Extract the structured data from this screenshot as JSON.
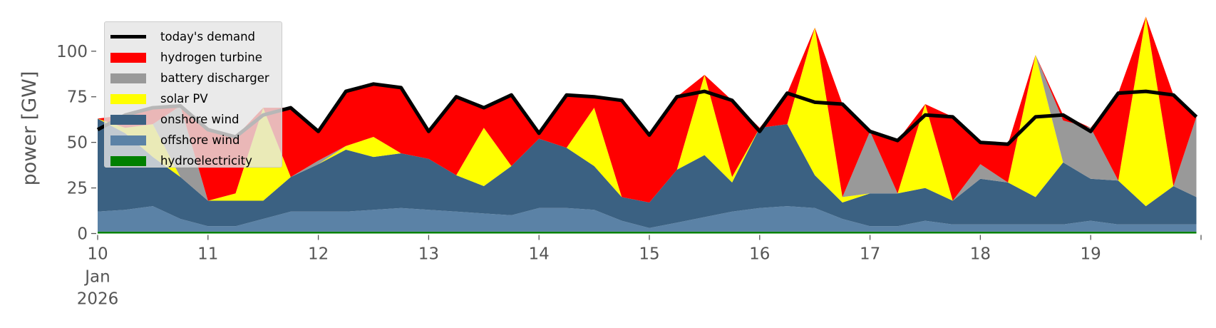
{
  "chart_data": {
    "type": "area",
    "stacked": true,
    "ylabel": "power [GW]",
    "xlabel": "",
    "ylim": [
      0,
      120
    ],
    "yticks": [
      0,
      25,
      50,
      75,
      100
    ],
    "xlim_hours": [
      0,
      240
    ],
    "xticks": [
      {
        "hour": 0,
        "label": "10",
        "sub": [
          "Jan",
          "2026"
        ]
      },
      {
        "hour": 24,
        "label": "11"
      },
      {
        "hour": 48,
        "label": "12"
      },
      {
        "hour": 72,
        "label": "13"
      },
      {
        "hour": 96,
        "label": "14"
      },
      {
        "hour": 120,
        "label": "15"
      },
      {
        "hour": 144,
        "label": "16"
      },
      {
        "hour": 168,
        "label": "17"
      },
      {
        "hour": 192,
        "label": "18"
      },
      {
        "hour": 216,
        "label": "19"
      },
      {
        "hour": 240,
        "label": ""
      }
    ],
    "grid": false,
    "legend_position": "top-left",
    "x_hours": [
      0,
      6,
      12,
      18,
      24,
      30,
      36,
      42,
      48,
      54,
      60,
      66,
      72,
      78,
      84,
      90,
      96,
      102,
      108,
      114,
      120,
      126,
      132,
      138,
      144,
      150,
      156,
      162,
      168,
      174,
      180,
      186,
      192,
      198,
      204,
      210,
      216,
      222,
      228,
      234,
      239
    ],
    "series": [
      {
        "name": "hydroelectricity",
        "color": "#008000",
        "values": [
          1,
          1,
          1,
          1,
          1,
          1,
          1,
          1,
          1,
          1,
          1,
          1,
          1,
          1,
          1,
          1,
          1,
          1,
          1,
          1,
          1,
          1,
          1,
          1,
          1,
          1,
          1,
          1,
          1,
          1,
          1,
          1,
          1,
          1,
          1,
          1,
          1,
          1,
          1,
          1,
          1
        ]
      },
      {
        "name": "offshore wind",
        "color": "#5b82a6",
        "values": [
          11,
          12,
          14,
          7,
          3,
          3,
          7,
          11,
          11,
          11,
          12,
          13,
          12,
          11,
          10,
          9,
          13,
          13,
          12,
          6,
          2,
          5,
          8,
          11,
          13,
          14,
          13,
          7,
          3,
          3,
          6,
          4,
          4,
          4,
          4,
          4,
          6,
          4,
          4,
          4,
          4
        ]
      },
      {
        "name": "onshore wind",
        "color": "#3b6182",
        "values": [
          51,
          42,
          27,
          23,
          14,
          14,
          10,
          19,
          26,
          34,
          29,
          30,
          28,
          20,
          15,
          27,
          38,
          33,
          24,
          13,
          14,
          29,
          34,
          16,
          44,
          45,
          18,
          9,
          18,
          18,
          18,
          13,
          25,
          23,
          15,
          34,
          23,
          24,
          10,
          21,
          15
        ]
      },
      {
        "name": "solar PV",
        "color": "#ffff00",
        "values": [
          0,
          3,
          18,
          0,
          0,
          4,
          51,
          0,
          0,
          2,
          11,
          0,
          0,
          0,
          32,
          0,
          0,
          0,
          32,
          0,
          0,
          0,
          44,
          3,
          0,
          0,
          81,
          3,
          0,
          0,
          46,
          0,
          0,
          0,
          78,
          0,
          0,
          0,
          104,
          0,
          0
        ]
      },
      {
        "name": "battery discharger",
        "color": "#999999",
        "values": [
          0,
          0,
          0,
          39,
          0,
          0,
          0,
          0,
          2,
          0,
          0,
          0,
          0,
          0,
          0,
          0,
          0,
          0,
          0,
          0,
          0,
          0,
          0,
          0,
          0,
          0,
          0,
          0,
          34,
          0,
          0,
          0,
          8,
          0,
          0,
          23,
          28,
          0,
          0,
          0,
          44
        ]
      },
      {
        "name": "hydrogen turbine",
        "color": "#ff0000",
        "values": [
          0,
          7,
          9,
          0,
          39,
          31,
          0,
          38,
          16,
          30,
          29,
          36,
          15,
          43,
          11,
          39,
          3,
          29,
          6,
          53,
          37,
          40,
          0,
          42,
          0,
          17,
          0,
          51,
          0,
          29,
          0,
          46,
          12,
          21,
          0,
          3,
          0,
          48,
          0,
          50,
          0
        ]
      }
    ],
    "line": {
      "name": "today's demand",
      "color": "#000000",
      "values": [
        57,
        65,
        69,
        70,
        57,
        53,
        65,
        69,
        56,
        78,
        82,
        80,
        56,
        75,
        69,
        76,
        55,
        76,
        75,
        73,
        54,
        75,
        78,
        73,
        56,
        77,
        72,
        71,
        56,
        51,
        65,
        64,
        50,
        49,
        64,
        65,
        56,
        77,
        78,
        76,
        64
      ]
    },
    "legend_order": [
      "today's demand",
      "hydrogen turbine",
      "battery discharger",
      "solar PV",
      "onshore wind",
      "offshore wind",
      "hydroelectricity"
    ]
  }
}
